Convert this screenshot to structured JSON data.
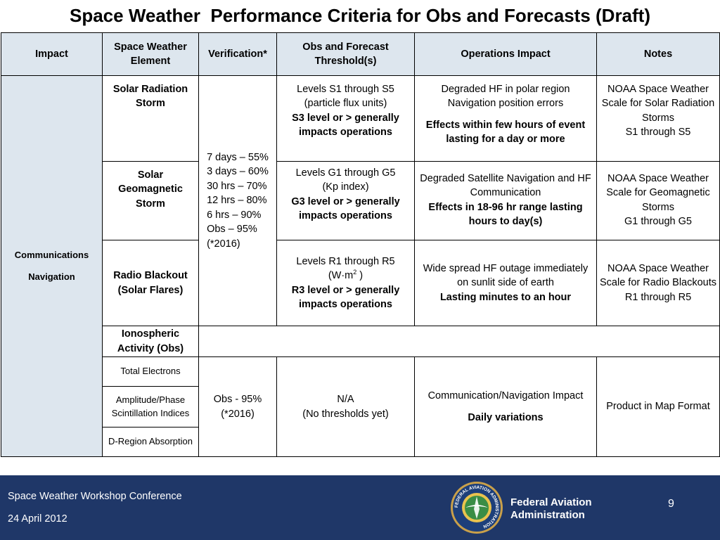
{
  "title": "Space Weather  Performance Criteria for Obs and Forecasts (Draft)",
  "headers": {
    "impact": "Impact",
    "element": "Space Weather Element",
    "verification": "Verification*",
    "threshold": "Obs and Forecast Threshold(s)",
    "ops_impact": "Operations Impact",
    "notes": "Notes"
  },
  "impact_label_1": "Communications",
  "impact_label_2": "Navigation",
  "verification_forecast": [
    "7 days – 55%",
    "3 days – 60%",
    "30 hrs – 70%",
    "12 hrs – 80%",
    "6 hrs – 90%",
    "Obs – 95%",
    "(*2016)"
  ],
  "rows": {
    "solar_radiation": {
      "element": "Solar Radiation Storm",
      "threshold_1": "Levels S1 through S5",
      "threshold_2": "(particle flux units)",
      "threshold_bold": "S3 level or > generally impacts operations",
      "ops_1": "Degraded HF in polar region",
      "ops_2": "Navigation position errors",
      "ops_bold": "Effects within few hours of event lasting for a day or more",
      "notes_1": "NOAA Space Weather Scale for Solar Radiation Storms",
      "notes_2": "S1 through S5"
    },
    "geomagnetic": {
      "element": "Solar Geomagnetic Storm",
      "threshold_1": "Levels G1 through G5",
      "threshold_2": "(Kp index)",
      "threshold_bold": "G3 level or > generally impacts operations",
      "ops_1": "Degraded Satellite Navigation and HF Communication",
      "ops_bold": "Effects in 18-96 hr range lasting hours to day(s)",
      "notes_1": "NOAA Space Weather Scale for Geomagnetic Storms",
      "notes_2": "G1 through G5"
    },
    "radio_blackout": {
      "element": "Radio Blackout (Solar Flares)",
      "threshold_1": "Levels R1 through R5",
      "threshold_2a": "(W·m",
      "threshold_2sup": "2",
      "threshold_2b": " )",
      "threshold_bold": "R3 level or > generally impacts operations",
      "ops_1": "Wide spread HF outage immediately on sunlit side of earth",
      "ops_bold": "Lasting minutes to an hour",
      "notes_1": "NOAA Space Weather Scale for Radio Blackouts",
      "notes_2": "R1 through R5"
    },
    "ionospheric": {
      "element": "Ionospheric Activity (Obs)"
    },
    "obs": {
      "sub_1": "Total Electrons",
      "sub_2": "Amplitude/Phase Scintillation Indices",
      "sub_3": "D-Region Absorption",
      "verification_1": "Obs - 95%",
      "verification_2": "(*2016)",
      "threshold_1": "N/A",
      "threshold_2": "(No thresholds yet)",
      "ops_1": "Communication/Navigation Impact",
      "ops_bold": "Daily variations",
      "notes": "Product in Map Format"
    }
  },
  "footer": {
    "conference": "Space Weather Workshop Conference",
    "date": "24 April 2012",
    "agency_1": "Federal Aviation",
    "agency_2": "Administration",
    "page_number": "9",
    "seal_text": "FEDERAL AVIATION ADMINISTRATION"
  },
  "colors": {
    "header_fill": "#dde6ee",
    "footer_bg": "#1f3768"
  }
}
